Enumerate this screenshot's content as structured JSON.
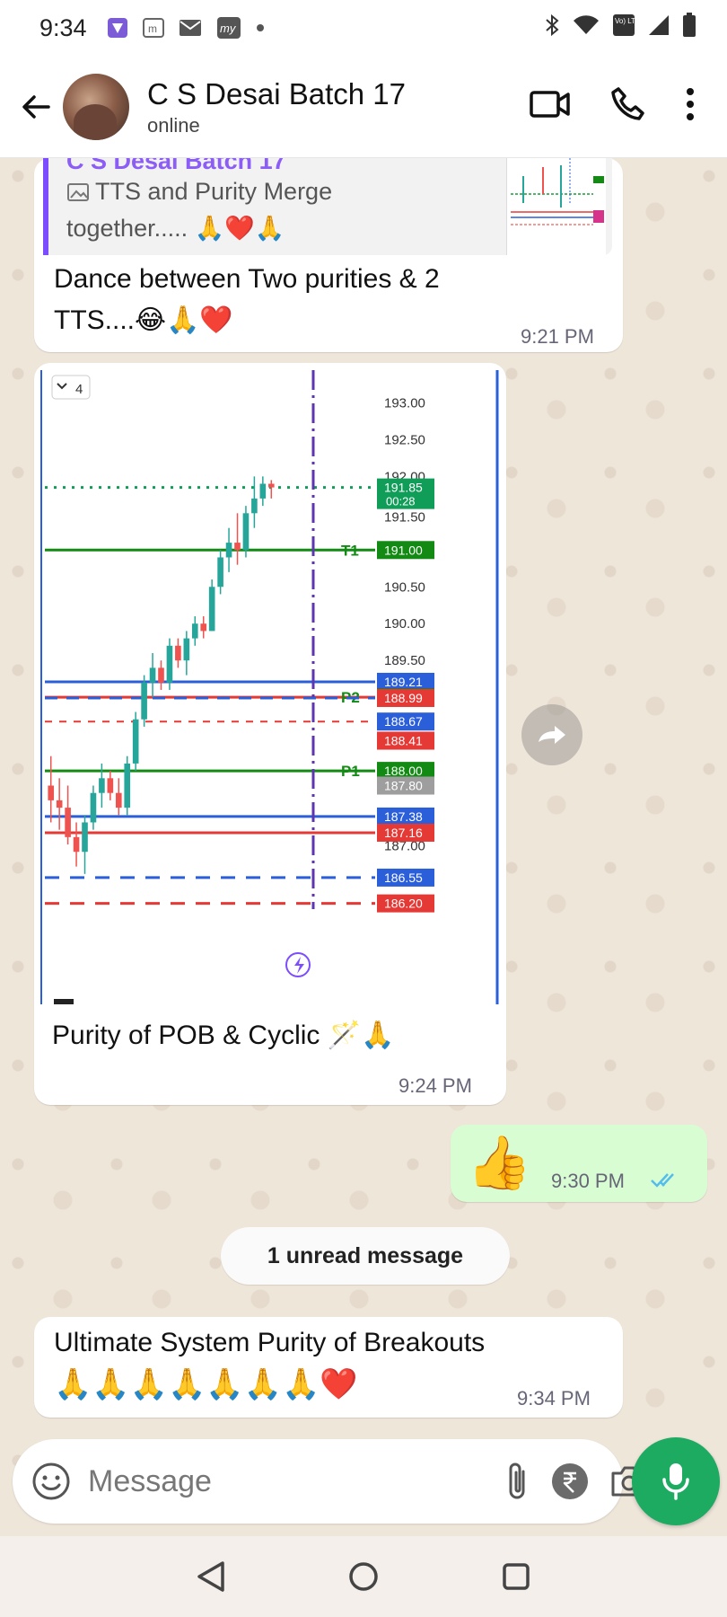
{
  "status_bar": {
    "time": "9:34",
    "left_icons": [
      "stream-app-icon",
      "m-app-icon",
      "mail-icon",
      "my-app-icon",
      "dot-icon"
    ],
    "right_icons": [
      "bluetooth-icon",
      "wifi-icon",
      "volte-icon",
      "signal-icon",
      "battery-icon"
    ],
    "volte_label": "Vo) LTE"
  },
  "header": {
    "title": "C S Desai Batch 17",
    "subtitle": "online"
  },
  "messages": [
    {
      "direction": "incoming",
      "quote": {
        "author": "C S Desai Batch 17",
        "line1": "TTS and Purity Merge",
        "line2": "together..... 🙏❤️🙏"
      },
      "text_line1": "Dance between Two purities & 2",
      "text_line2": "TTS....😂🙏❤️",
      "time": "9:21 PM"
    },
    {
      "direction": "incoming",
      "type": "image",
      "caption": "Purity of POB & Cyclic 🪄🙏",
      "time": "9:24 PM",
      "chart_badge": "4"
    },
    {
      "direction": "outgoing",
      "text": "👍",
      "time": "9:30 PM",
      "status": "read"
    },
    {
      "direction": "incoming",
      "text_line1": "Ultimate System Purity of Breakouts",
      "text_line2": "🙏🙏🙏🙏🙏🙏🙏❤️",
      "time": "9:34 PM"
    }
  ],
  "unread_banner": "1 unread message",
  "composer": {
    "placeholder": "Message"
  },
  "chart_data": {
    "type": "candlestick",
    "y_ticks": [
      "193.00",
      "192.50",
      "192.00",
      "191.50",
      "190.50",
      "190.00",
      "189.50",
      "187.00"
    ],
    "ylim": [
      186.0,
      193.2
    ],
    "price_labels": [
      {
        "text": "191.85",
        "sub": "00:28",
        "value": 191.85,
        "color": "#0f9d58",
        "style": "dotted"
      },
      {
        "text": "191.00",
        "value": 191.0,
        "color": "#138a13",
        "line_label": "T1",
        "style": "solid"
      },
      {
        "text": "189.21",
        "value": 189.21,
        "color": "#2b5fd9",
        "style": "solid"
      },
      {
        "text": "189.00",
        "value": 189.0,
        "color": "#138a13",
        "line_label": "P2",
        "style": "solid-red"
      },
      {
        "text": "188.99",
        "value": 188.99,
        "color": "#e53935",
        "style": "dashed-blue"
      },
      {
        "text": "188.67",
        "value": 188.67,
        "color": "#2b5fd9",
        "style": "dashed-red"
      },
      {
        "text": "188.41",
        "value": 188.41,
        "color": "#e53935",
        "style": "none"
      },
      {
        "text": "188.00",
        "value": 188.0,
        "color": "#138a13",
        "line_label": "P1",
        "style": "solid"
      },
      {
        "text": "187.80",
        "value": 187.8,
        "color": "#9e9e9e",
        "style": "none"
      },
      {
        "text": "187.38",
        "value": 187.38,
        "color": "#2b5fd9",
        "style": "solid"
      },
      {
        "text": "187.16",
        "value": 187.16,
        "color": "#e53935",
        "style": "solid"
      },
      {
        "text": "186.55",
        "value": 186.55,
        "color": "#2b5fd9",
        "style": "dashed"
      },
      {
        "text": "186.20",
        "value": 186.2,
        "color": "#e53935",
        "style": "dashed"
      }
    ],
    "candles": [
      {
        "o": 187.8,
        "h": 188.2,
        "l": 187.3,
        "c": 187.6
      },
      {
        "o": 187.6,
        "h": 187.9,
        "l": 187.2,
        "c": 187.5
      },
      {
        "o": 187.5,
        "h": 187.8,
        "l": 187.0,
        "c": 187.1
      },
      {
        "o": 187.1,
        "h": 187.3,
        "l": 186.7,
        "c": 186.9
      },
      {
        "o": 186.9,
        "h": 187.4,
        "l": 186.6,
        "c": 187.3
      },
      {
        "o": 187.3,
        "h": 187.8,
        "l": 187.2,
        "c": 187.7
      },
      {
        "o": 187.7,
        "h": 188.1,
        "l": 187.5,
        "c": 187.9
      },
      {
        "o": 187.9,
        "h": 188.0,
        "l": 187.6,
        "c": 187.7
      },
      {
        "o": 187.7,
        "h": 187.9,
        "l": 187.4,
        "c": 187.5
      },
      {
        "o": 187.5,
        "h": 188.2,
        "l": 187.4,
        "c": 188.1
      },
      {
        "o": 188.1,
        "h": 188.8,
        "l": 188.0,
        "c": 188.7
      },
      {
        "o": 188.7,
        "h": 189.3,
        "l": 188.6,
        "c": 189.2
      },
      {
        "o": 189.2,
        "h": 189.6,
        "l": 189.0,
        "c": 189.4
      },
      {
        "o": 189.4,
        "h": 189.5,
        "l": 189.1,
        "c": 189.2
      },
      {
        "o": 189.2,
        "h": 189.8,
        "l": 189.1,
        "c": 189.7
      },
      {
        "o": 189.7,
        "h": 189.8,
        "l": 189.4,
        "c": 189.5
      },
      {
        "o": 189.5,
        "h": 189.9,
        "l": 189.3,
        "c": 189.8
      },
      {
        "o": 189.8,
        "h": 190.1,
        "l": 189.7,
        "c": 190.0
      },
      {
        "o": 190.0,
        "h": 190.1,
        "l": 189.8,
        "c": 189.9
      },
      {
        "o": 189.9,
        "h": 190.6,
        "l": 189.9,
        "c": 190.5
      },
      {
        "o": 190.5,
        "h": 191.0,
        "l": 190.4,
        "c": 190.9
      },
      {
        "o": 190.9,
        "h": 191.3,
        "l": 190.7,
        "c": 191.1
      },
      {
        "o": 191.1,
        "h": 191.5,
        "l": 190.8,
        "c": 191.0
      },
      {
        "o": 191.0,
        "h": 191.6,
        "l": 190.9,
        "c": 191.5
      },
      {
        "o": 191.5,
        "h": 192.0,
        "l": 191.3,
        "c": 191.7
      },
      {
        "o": 191.7,
        "h": 192.0,
        "l": 191.6,
        "c": 191.9
      },
      {
        "o": 191.9,
        "h": 191.95,
        "l": 191.7,
        "c": 191.85
      }
    ],
    "vertical_marker_index": 32,
    "colors": {
      "up": "#26a69a",
      "down": "#ef5350",
      "axis": "#2b5fd9",
      "marker": "#5e35b1"
    }
  },
  "colors": {
    "accent": "#1daa61",
    "outgoing_bubble": "#d9fdd3",
    "read_ticks": "#53bdeb",
    "quote_author": "#8b5cf6"
  }
}
